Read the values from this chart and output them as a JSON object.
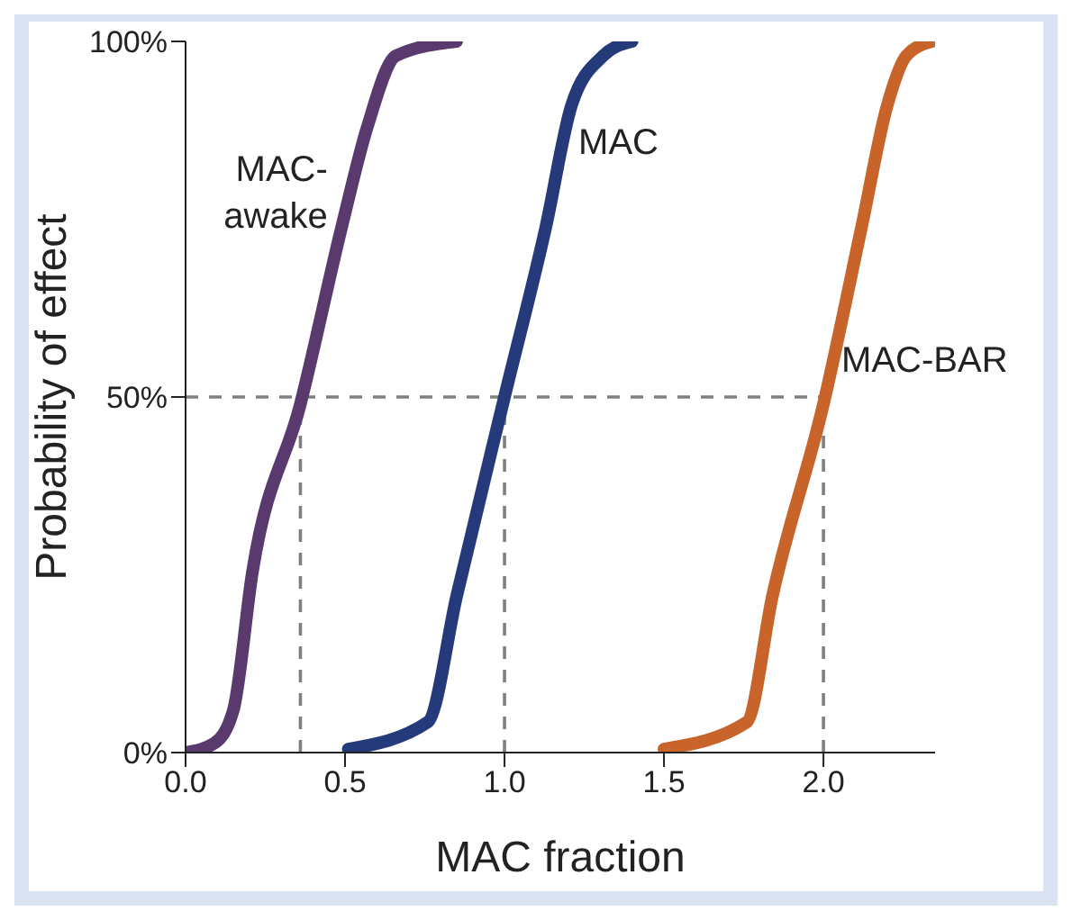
{
  "chart_data": {
    "type": "line",
    "xlabel": "MAC fraction",
    "ylabel": "Probability of effect",
    "xlim": [
      0,
      2.35
    ],
    "ylim": [
      0,
      100
    ],
    "xticks": [
      {
        "value": 0,
        "label": "0.0"
      },
      0.5,
      {
        "value": 1,
        "label": "1.0"
      },
      1.5,
      {
        "value": 2,
        "label": "2.0"
      }
    ],
    "yticks": [
      {
        "value": 0,
        "label": "0%"
      },
      {
        "value": 50,
        "label": "50%"
      },
      {
        "value": 100,
        "label": "100%"
      }
    ],
    "marker": "none",
    "line_style": "solid",
    "ref_lines": [
      {
        "axis": "y",
        "value": 50,
        "color": "#808080",
        "line_style": "dashed"
      },
      {
        "axis": "x",
        "value": 0.36,
        "color": "#808080",
        "line_style": "dashed"
      },
      {
        "axis": "x",
        "value": 1.0,
        "color": "#808080",
        "line_style": "dashed"
      },
      {
        "axis": "x",
        "value": 2.0,
        "color": "#808080",
        "line_style": "dashed"
      }
    ],
    "series": [
      {
        "name": "MAC-awake",
        "color": "#5a3a6e",
        "x": [
          0,
          0.09,
          0.15,
          0.21,
          0.36,
          0.49,
          0.57,
          0.66,
          0.85
        ],
        "values": [
          0,
          1.3,
          6,
          25.5,
          49,
          74,
          88,
          98,
          100
        ]
      },
      {
        "name": "MAC",
        "color": "#253a7a",
        "x": [
          0.51,
          0.76,
          0.85,
          1.0,
          1.13,
          1.21,
          1.31,
          1.4
        ],
        "values": [
          0.5,
          4.3,
          22,
          50,
          74,
          91,
          98,
          100
        ]
      },
      {
        "name": "MAC-BAR",
        "color": "#c8642a",
        "x": [
          1.5,
          1.76,
          1.84,
          2.0,
          2.12,
          2.2,
          2.26,
          2.34
        ],
        "values": [
          0.5,
          4.3,
          22,
          49,
          74,
          91,
          98,
          100
        ]
      }
    ]
  }
}
